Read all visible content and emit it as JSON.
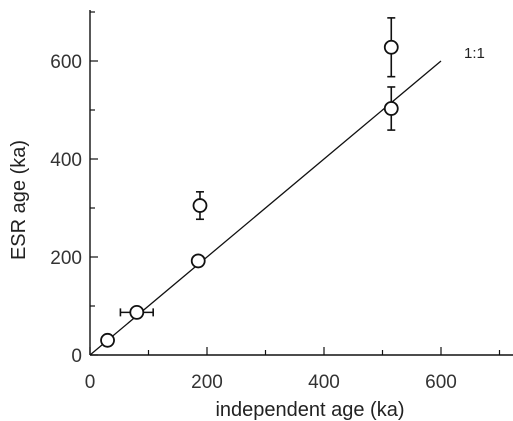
{
  "chart_data": {
    "type": "scatter",
    "title": "",
    "xlabel": "independent age (ka)",
    "ylabel": "ESR age (ka)",
    "xlim": [
      0,
      700
    ],
    "ylim": [
      0,
      700
    ],
    "x_ticks": [
      "0",
      "200",
      "400",
      "600"
    ],
    "y_ticks": [
      "0",
      "200",
      "400",
      "600"
    ],
    "grid": false,
    "reference_line": {
      "label": "1:1",
      "from": [
        0,
        0
      ],
      "to": [
        600,
        600
      ]
    },
    "points": [
      {
        "x": 30,
        "y": 30,
        "x_err": 0,
        "y_err": 10
      },
      {
        "x": 80,
        "y": 87,
        "x_err": 28,
        "y_err": 8
      },
      {
        "x": 185,
        "y": 192,
        "x_err": 0,
        "y_err": 6
      },
      {
        "x": 188,
        "y": 305,
        "x_err": 0,
        "y_err": 28
      },
      {
        "x": 515,
        "y": 628,
        "x_err": 0,
        "y_err": 60
      },
      {
        "x": 515,
        "y": 503,
        "x_err": 0,
        "y_err": 44
      }
    ]
  }
}
